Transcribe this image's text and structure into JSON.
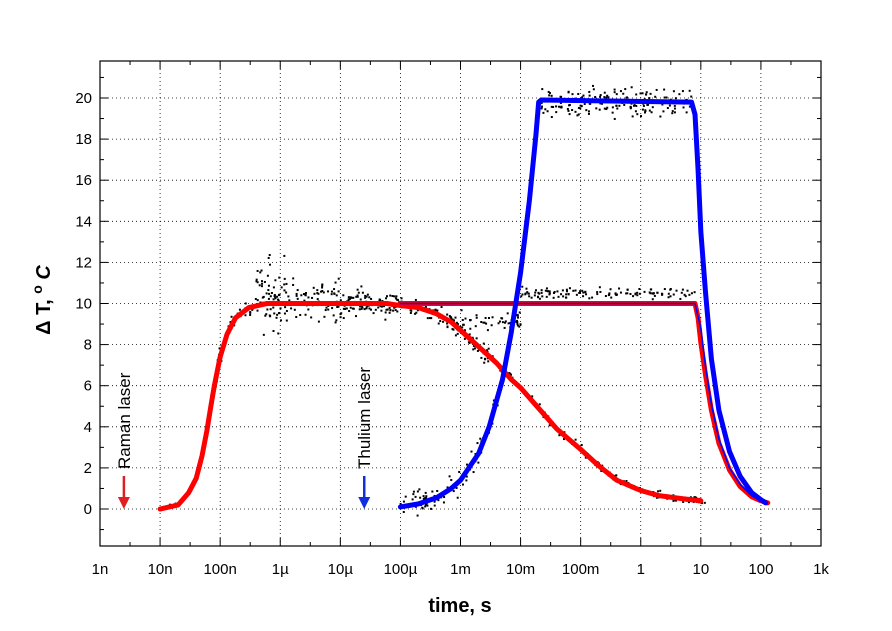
{
  "chart_data": {
    "type": "line",
    "title": "",
    "xlabel": "time, s",
    "ylabel_main": "Δ T,",
    "ylabel_sup": "o",
    "ylabel_unit": "C",
    "xscale": "log",
    "xlim": [
      1e-09,
      1000
    ],
    "ylim": [
      -1.8,
      21.8
    ],
    "grid": true,
    "x_ticks": [
      {
        "value": 1e-09,
        "label": "1n"
      },
      {
        "value": 1e-08,
        "label": "10n"
      },
      {
        "value": 1e-07,
        "label": "100n"
      },
      {
        "value": 1e-06,
        "label": "1µ"
      },
      {
        "value": 1e-05,
        "label": "10µ"
      },
      {
        "value": 0.0001,
        "label": "100µ"
      },
      {
        "value": 0.001,
        "label": "1m"
      },
      {
        "value": 0.01,
        "label": "10m"
      },
      {
        "value": 0.1,
        "label": "100m"
      },
      {
        "value": 1,
        "label": "1"
      },
      {
        "value": 10,
        "label": "10"
      },
      {
        "value": 100,
        "label": "100"
      },
      {
        "value": 1000,
        "label": "1k"
      }
    ],
    "y_ticks": [
      {
        "value": 0,
        "label": "0"
      },
      {
        "value": 2,
        "label": "2"
      },
      {
        "value": 4,
        "label": "4"
      },
      {
        "value": 6,
        "label": "6"
      },
      {
        "value": 8,
        "label": "8"
      },
      {
        "value": 10,
        "label": "10"
      },
      {
        "value": 12,
        "label": "12"
      },
      {
        "value": 14,
        "label": "14"
      },
      {
        "value": 16,
        "label": "16"
      },
      {
        "value": 18,
        "label": "18"
      },
      {
        "value": 20,
        "label": "20"
      }
    ],
    "series": [
      {
        "color": "#ff0000",
        "style": "thick",
        "points": [
          [
            1e-08,
            0
          ],
          [
            2e-08,
            0.2
          ],
          [
            3e-08,
            0.8
          ],
          [
            4e-08,
            1.5
          ],
          [
            5e-08,
            2.6
          ],
          [
            6e-08,
            3.8
          ],
          [
            7e-08,
            5.0
          ],
          [
            8e-08,
            6.0
          ],
          [
            1e-07,
            7.4
          ],
          [
            1.3e-07,
            8.5
          ],
          [
            1.8e-07,
            9.3
          ],
          [
            3e-07,
            9.8
          ],
          [
            6e-07,
            10.0
          ],
          [
            1e-06,
            10.0
          ],
          [
            1e-05,
            10.0
          ],
          [
            6e-05,
            10.0
          ],
          [
            0.0001,
            9.9
          ],
          [
            0.0002,
            9.8
          ],
          [
            0.0004,
            9.5
          ],
          [
            0.0007,
            9.1
          ],
          [
            0.001,
            8.7
          ],
          [
            0.002,
            7.9
          ],
          [
            0.004,
            7.1
          ],
          [
            0.007,
            6.3
          ],
          [
            0.01,
            5.9
          ],
          [
            0.02,
            4.9
          ],
          [
            0.04,
            3.9
          ],
          [
            0.1,
            2.9
          ],
          [
            0.2,
            2.1
          ],
          [
            0.4,
            1.4
          ],
          [
            1,
            0.9
          ],
          [
            2,
            0.65
          ],
          [
            5,
            0.5
          ],
          [
            10,
            0.4
          ]
        ]
      },
      {
        "color": "#ff0000",
        "style": "thick",
        "points": [
          [
            0.0001,
            10.0
          ],
          [
            8,
            10.0
          ],
          [
            9,
            9.3
          ],
          [
            10,
            8.1
          ],
          [
            12,
            6.5
          ],
          [
            15,
            4.8
          ],
          [
            20,
            3.2
          ],
          [
            30,
            1.9
          ],
          [
            45,
            1.1
          ],
          [
            70,
            0.6
          ],
          [
            100,
            0.4
          ],
          [
            130,
            0.3
          ]
        ]
      },
      {
        "color": "#0000ff",
        "style": "thick",
        "points": [
          [
            0.0001,
            0.1
          ],
          [
            0.0002,
            0.25
          ],
          [
            0.0004,
            0.55
          ],
          [
            0.0007,
            1.0
          ],
          [
            0.001,
            1.4
          ],
          [
            0.002,
            2.7
          ],
          [
            0.003,
            4.0
          ],
          [
            0.005,
            6.3
          ],
          [
            0.007,
            8.6
          ],
          [
            0.01,
            11.5
          ],
          [
            0.014,
            15.0
          ],
          [
            0.018,
            18.2
          ],
          [
            0.02,
            19.8
          ],
          [
            0.022,
            19.9
          ],
          [
            7,
            19.8
          ],
          [
            8,
            19.2
          ],
          [
            9,
            16.5
          ],
          [
            10,
            13.5
          ],
          [
            12,
            10.5
          ],
          [
            15,
            7.3
          ],
          [
            20,
            4.8
          ],
          [
            30,
            2.8
          ],
          [
            45,
            1.6
          ],
          [
            70,
            0.8
          ],
          [
            100,
            0.45
          ],
          [
            120,
            0.3
          ]
        ]
      },
      {
        "color": "#0000ff",
        "style": "thin",
        "points": [
          [
            0.0001,
            10.0
          ],
          [
            8,
            10.0
          ],
          [
            10,
            8.8
          ],
          [
            12,
            6.9
          ],
          [
            15,
            5.1
          ],
          [
            20,
            3.4
          ],
          [
            30,
            2.0
          ],
          [
            45,
            1.2
          ],
          [
            70,
            0.65
          ],
          [
            100,
            0.4
          ],
          [
            120,
            0.3
          ]
        ]
      }
    ],
    "scatter_bands": [
      {
        "x_from": 1e-08,
        "x_to": 5e-08,
        "center": "red0",
        "spread": 0.12,
        "count": 12
      },
      {
        "x_from": 5e-08,
        "x_to": 4e-07,
        "center": "red0",
        "spread": 0.35,
        "count": 40
      },
      {
        "x_from": 4e-07,
        "x_to": 1.2e-06,
        "center": 10.4,
        "spread": 1.2,
        "count": 70
      },
      {
        "x_from": 1.2e-06,
        "x_to": 1e-05,
        "center": 10.2,
        "spread": 0.7,
        "count": 80
      },
      {
        "x_from": 1e-05,
        "x_to": 0.0001,
        "center": 10.0,
        "spread": 0.45,
        "count": 110
      },
      {
        "x_from": 0.0001,
        "x_to": 0.003,
        "center": "red0",
        "spread": 0.3,
        "count": 130
      },
      {
        "x_from": 0.003,
        "x_to": 12,
        "center": "red0",
        "spread": 0.15,
        "count": 180
      },
      {
        "x_from": 0.0001,
        "x_to": 0.002,
        "center": "blue0",
        "spread": 0.45,
        "count": 70
      },
      {
        "x_from": 0.002,
        "x_to": 0.02,
        "center": "blue0",
        "spread": 0.3,
        "count": 60
      },
      {
        "x_from": 0.022,
        "x_to": 7,
        "center": 19.8,
        "spread": 0.5,
        "count": 170
      },
      {
        "x_from": 7,
        "x_to": 20,
        "center": "blue0",
        "spread": 0.2,
        "count": 30
      },
      {
        "x_from": 0.0006,
        "x_to": 0.01,
        "center": 9.2,
        "spread": 0.35,
        "count": 50
      },
      {
        "x_from": 0.01,
        "x_to": 8,
        "center": 10.5,
        "spread": 0.2,
        "count": 120
      },
      {
        "x_from": 8,
        "x_to": 15,
        "center": "red1",
        "spread": 0.25,
        "count": 30
      }
    ],
    "annotations": [
      {
        "text": "Raman laser",
        "x": 2.5e-09,
        "y": 0.0,
        "color": "#e02020"
      },
      {
        "text": "Thulium laser",
        "x": 2.5e-05,
        "y": 0.0,
        "color": "#1030e0"
      }
    ]
  }
}
